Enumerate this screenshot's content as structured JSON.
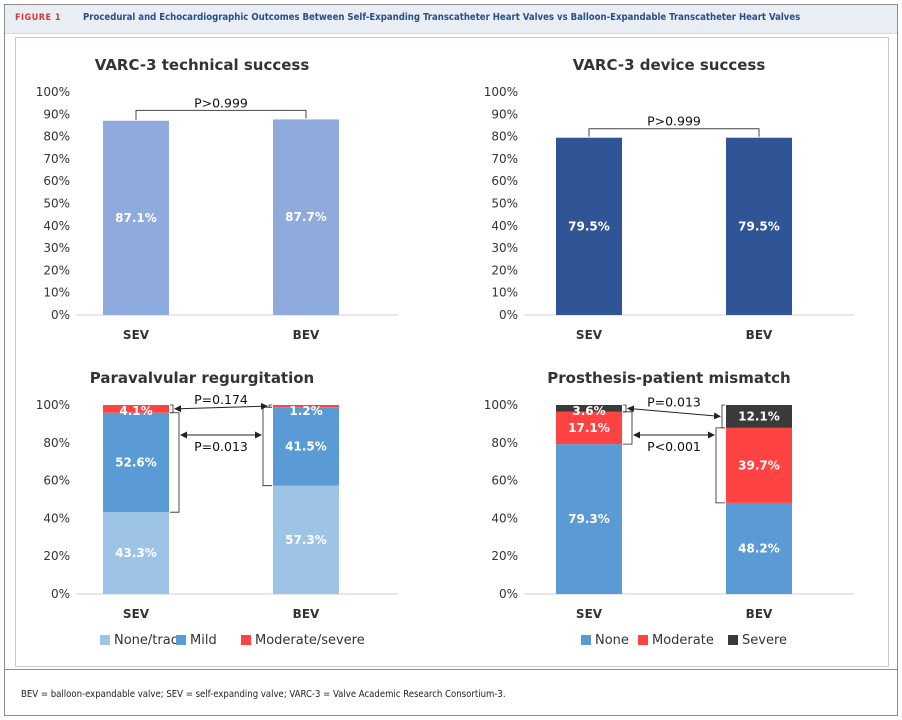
{
  "figure": {
    "label": "FIGURE 1",
    "title": "Procedural and Echocardiographic Outcomes Between Self-Expanding Transcatheter Heart Valves vs Balloon-Expandable Transcatheter Heart Valves",
    "footnote": "BEV = balloon-expandable valve; SEV = self-expanding valve; VARC-3 = Valve Academic Research Consortium-3."
  },
  "chart_data": [
    {
      "type": "bar",
      "title": "VARC-3 technical success",
      "categories": [
        "SEV",
        "BEV"
      ],
      "values": [
        87.1,
        87.7
      ],
      "data_labels": [
        "87.1%",
        "87.7%"
      ],
      "ylim": [
        0,
        100
      ],
      "yticks": [
        "0%",
        "10%",
        "20%",
        "30%",
        "40%",
        "50%",
        "60%",
        "70%",
        "80%",
        "90%",
        "100%"
      ],
      "color": "#8faadc",
      "annotation": "P>0.999"
    },
    {
      "type": "bar",
      "title": "VARC-3 device success",
      "categories": [
        "SEV",
        "BEV"
      ],
      "values": [
        79.5,
        79.5
      ],
      "data_labels": [
        "79.5%",
        "79.5%"
      ],
      "ylim": [
        0,
        100
      ],
      "yticks": [
        "0%",
        "10%",
        "20%",
        "30%",
        "40%",
        "50%",
        "60%",
        "70%",
        "80%",
        "90%",
        "100%"
      ],
      "color": "#2f5597",
      "annotation": "P>0.999"
    },
    {
      "type": "bar",
      "stacked": true,
      "title": "Paravalvular regurgitation",
      "categories": [
        "SEV",
        "BEV"
      ],
      "ylim": [
        0,
        100
      ],
      "yticks": [
        "0%",
        "20%",
        "40%",
        "60%",
        "80%",
        "100%"
      ],
      "series": [
        {
          "name": "None/trace",
          "values": [
            43.3,
            57.3
          ],
          "labels": [
            "43.3%",
            "57.3%"
          ],
          "color": "#9dc3e6"
        },
        {
          "name": "Mild",
          "values": [
            52.6,
            41.5
          ],
          "labels": [
            "52.6%",
            "41.5%"
          ],
          "color": "#5b9bd5"
        },
        {
          "name": "Moderate/severe",
          "values": [
            4.1,
            1.2
          ],
          "labels": [
            "4.1%",
            "1.2%"
          ],
          "color": "#ff4343"
        }
      ],
      "annotations": [
        "P=0.174",
        "P=0.013"
      ],
      "legend": "bottom"
    },
    {
      "type": "bar",
      "stacked": true,
      "title": "Prosthesis-patient mismatch",
      "categories": [
        "SEV",
        "BEV"
      ],
      "ylim": [
        0,
        100
      ],
      "yticks": [
        "0%",
        "20%",
        "40%",
        "60%",
        "80%",
        "100%"
      ],
      "series": [
        {
          "name": "None",
          "values": [
            79.3,
            48.2
          ],
          "labels": [
            "79.3%",
            "48.2%"
          ],
          "color": "#5b9bd5"
        },
        {
          "name": "Moderate",
          "values": [
            17.1,
            39.7
          ],
          "labels": [
            "17.1%",
            "39.7%"
          ],
          "color": "#ff4343"
        },
        {
          "name": "Severe",
          "values": [
            3.6,
            12.1
          ],
          "labels": [
            "3.6%",
            "12.1%"
          ],
          "color": "#3a3a3a"
        }
      ],
      "annotations": [
        "P=0.013",
        "P<0.001"
      ],
      "legend": "bottom"
    }
  ]
}
